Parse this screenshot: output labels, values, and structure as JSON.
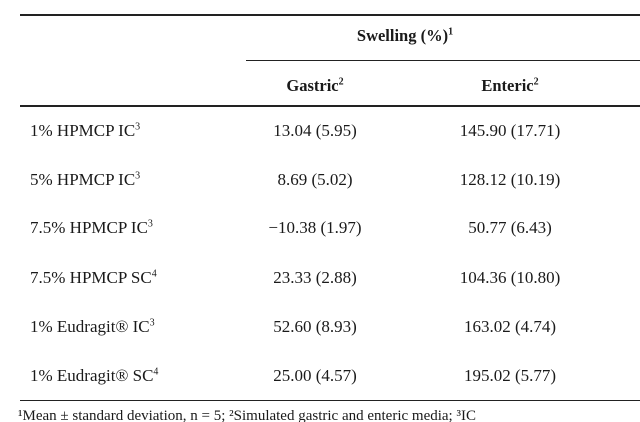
{
  "table": {
    "group_header": "Swelling (%)",
    "group_header_sup": "1",
    "columns": [
      {
        "label": "Gastric",
        "sup": "2"
      },
      {
        "label": "Enteric",
        "sup": "2"
      }
    ],
    "rows": [
      {
        "label": "1% HPMCP IC",
        "sup": "3",
        "gastric": "13.04 (5.95)",
        "enteric": "145.90 (17.71)"
      },
      {
        "label": "5% HPMCP IC",
        "sup": "3",
        "gastric": "8.69 (5.02)",
        "enteric": "128.12 (10.19)"
      },
      {
        "label": "7.5% HPMCP IC",
        "sup": "3",
        "gastric": "−10.38 (1.97)",
        "enteric": "50.77 (6.43)"
      },
      {
        "label": "7.5% HPMCP SC",
        "sup": "4",
        "gastric": "23.33 (2.88)",
        "enteric": "104.36 (10.80)"
      },
      {
        "label": "1% Eudragit® IC",
        "sup": "3",
        "gastric": "52.60 (8.93)",
        "enteric": "163.02 (4.74)"
      },
      {
        "label": "1% Eudragit® SC",
        "sup": "4",
        "gastric": "25.00 (4.57)",
        "enteric": "195.02 (5.77)"
      }
    ],
    "footnote": "¹Mean ± standard deviation, n = 5; ²Simulated gastric and enteric media; ³IC"
  }
}
